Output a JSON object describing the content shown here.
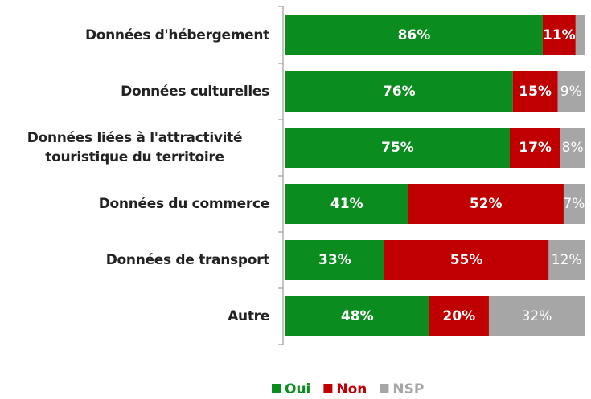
{
  "chart_data": {
    "type": "stacked-bar-horizontal",
    "categories": [
      "Données d'hébergement",
      "Données culturelles",
      "Données liées à l'attractivité touristique du territoire",
      "Données du commerce",
      "Données de transport",
      "Autre"
    ],
    "series": [
      {
        "name": "Oui",
        "color": "#0a8c1f",
        "values": [
          86,
          76,
          75,
          41,
          33,
          48
        ],
        "value_labels": [
          "86%",
          "76%",
          "75%",
          "41%",
          "33%",
          "48%"
        ]
      },
      {
        "name": "Non",
        "color": "#c00000",
        "values": [
          11,
          15,
          17,
          52,
          55,
          20
        ],
        "value_labels": [
          "11%",
          "15%",
          "17%",
          "52%",
          "55%",
          "20%"
        ]
      },
      {
        "name": "NSP",
        "color": "#a6a6a6",
        "values": [
          3,
          9,
          8,
          7,
          12,
          32
        ],
        "value_labels": [
          null,
          "9%",
          "8%",
          "7%",
          "12%",
          "32%"
        ]
      }
    ],
    "xlim": [
      0,
      100
    ]
  }
}
